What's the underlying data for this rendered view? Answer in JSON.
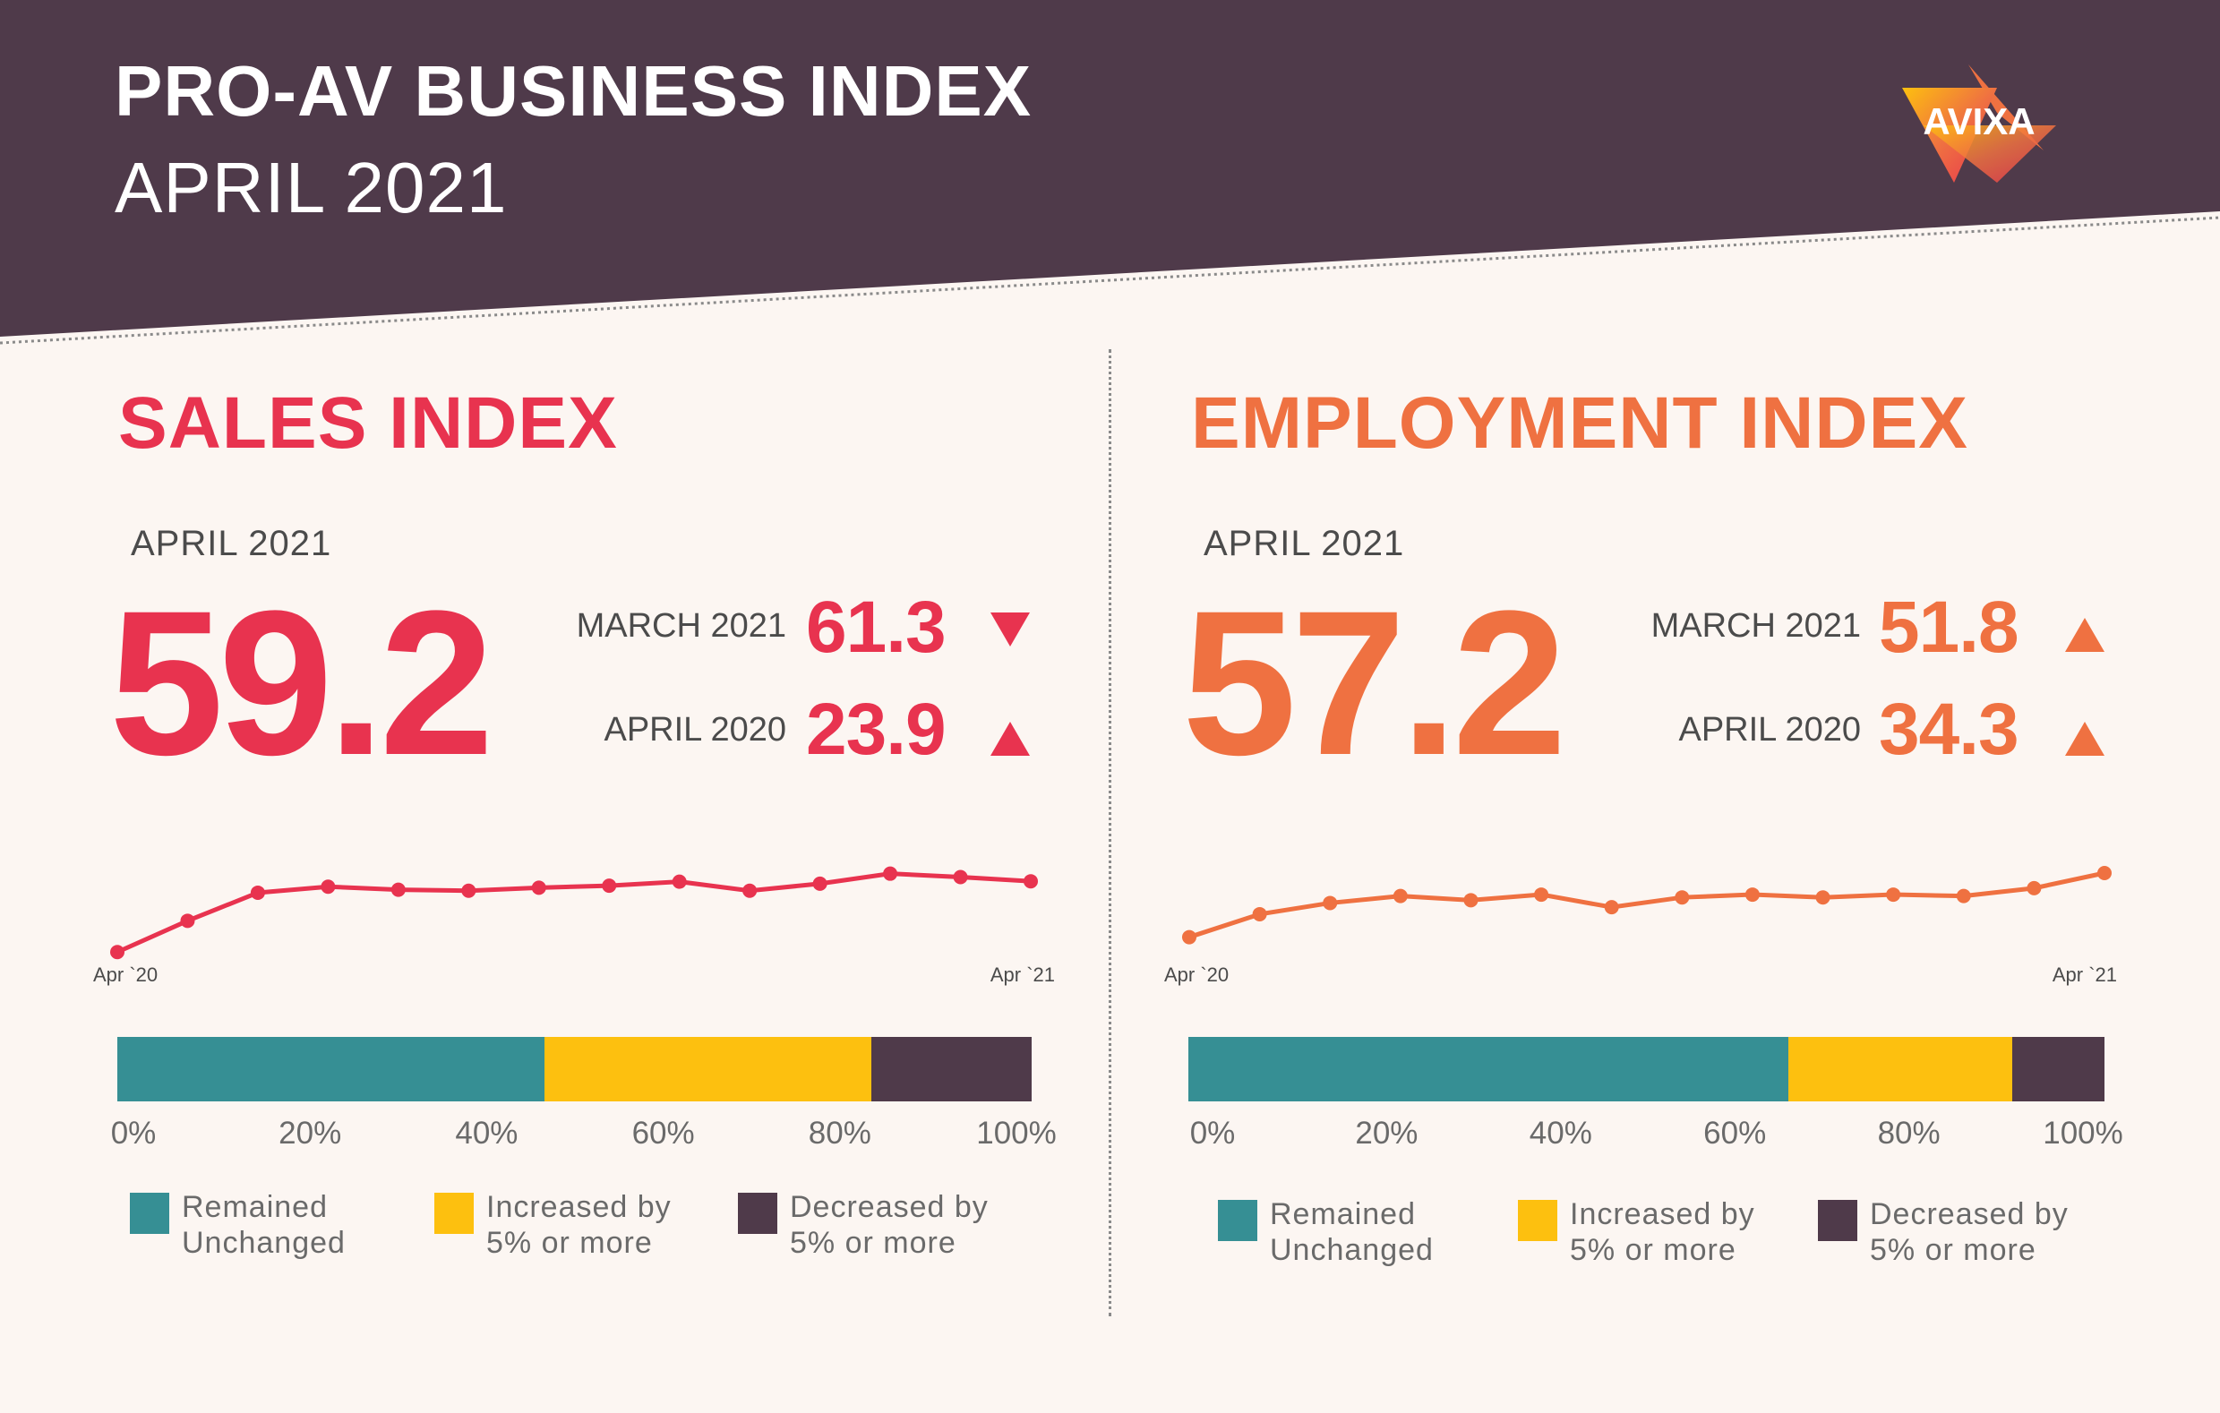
{
  "header": {
    "title": "PRO-AV BUSINESS INDEX",
    "subtitle": "APRIL 2021",
    "logo_text": "AVIXA",
    "bg_color": "#4f3a4a"
  },
  "colors": {
    "sales": "#e8334f",
    "employment": "#ef7141",
    "unchanged": "#368f94",
    "increased": "#fdc00f",
    "decreased": "#4f3a4a"
  },
  "sales": {
    "title": "SALES INDEX",
    "period_label": "APRIL 2021",
    "value": "59.2",
    "comparisons": [
      {
        "label": "MARCH 2021",
        "value": "61.3",
        "direction": "down"
      },
      {
        "label": "APRIL 2020",
        "value": "23.9",
        "direction": "up"
      }
    ]
  },
  "employment": {
    "title": "EMPLOYMENT INDEX",
    "period_label": "APRIL 2021",
    "value": "57.2",
    "comparisons": [
      {
        "label": "MARCH 2021",
        "value": "51.8",
        "direction": "up"
      },
      {
        "label": "APRIL 2020",
        "value": "34.3",
        "direction": "up"
      }
    ]
  },
  "legend": {
    "unchanged": "Remained\nUnchanged",
    "increased": "Increased by\n5% or more",
    "decreased": "Decreased by\n5% or more"
  },
  "chart_data": [
    {
      "type": "line",
      "id": "sales-trend",
      "x_start_label": "Apr `20",
      "x_end_label": "Apr `21",
      "values": [
        23.9,
        39.5,
        53.5,
        56.5,
        55,
        54.5,
        56,
        57,
        59,
        54.5,
        58,
        63,
        61.3,
        59.2
      ],
      "ylim": [
        20,
        70
      ],
      "grid": false
    },
    {
      "type": "line",
      "id": "employment-trend",
      "x_start_label": "Apr `20",
      "x_end_label": "Apr `21",
      "values": [
        34.3,
        42.5,
        46.5,
        49,
        47.5,
        49.5,
        45,
        48.5,
        49.5,
        48.5,
        49.5,
        49,
        51.8,
        57.2
      ],
      "ylim": [
        30,
        62
      ],
      "grid": false
    },
    {
      "type": "bar",
      "id": "sales-distribution",
      "orientation": "horizontal-stacked",
      "series": [
        {
          "name": "Remained Unchanged",
          "value": 46.7
        },
        {
          "name": "Increased by 5% or more",
          "value": 35.8
        },
        {
          "name": "Decreased by 5% or more",
          "value": 17.5
        }
      ],
      "tick_labels": [
        "0%",
        "20%",
        "40%",
        "60%",
        "80%",
        "100%"
      ],
      "xlim": [
        0,
        100
      ]
    },
    {
      "type": "bar",
      "id": "employment-distribution",
      "orientation": "horizontal-stacked",
      "series": [
        {
          "name": "Remained Unchanged",
          "value": 65.5
        },
        {
          "name": "Increased by 5% or more",
          "value": 24.4
        },
        {
          "name": "Decreased by 5% or more",
          "value": 10.1
        }
      ],
      "tick_labels": [
        "0%",
        "20%",
        "40%",
        "60%",
        "80%",
        "100%"
      ],
      "xlim": [
        0,
        100
      ]
    }
  ]
}
